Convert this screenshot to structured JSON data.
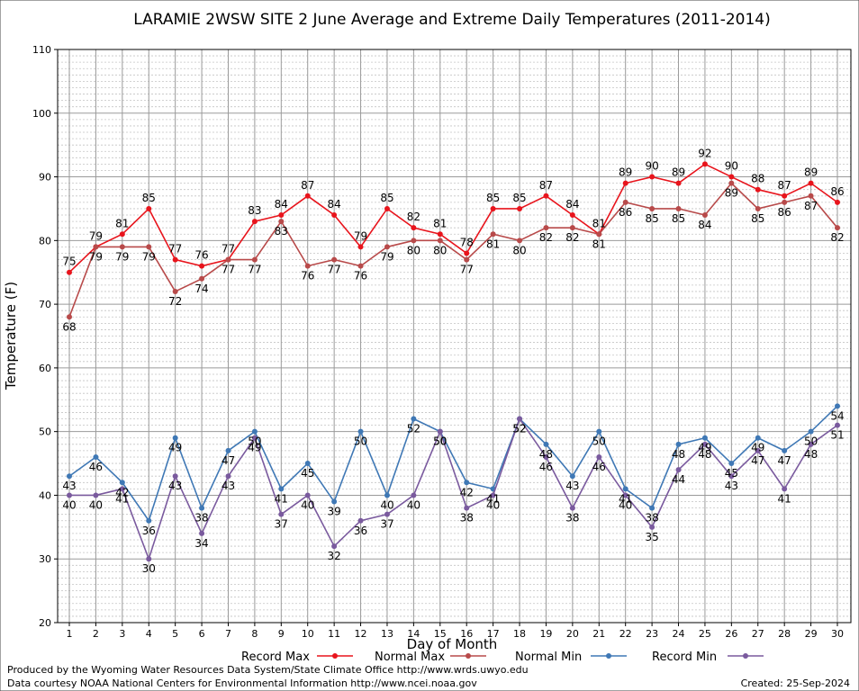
{
  "chart_data": {
    "type": "line",
    "title": "LARAMIE 2WSW SITE 2 June Average and Extreme Daily Temperatures (2011-2014)",
    "xlabel": "Day of Month",
    "ylabel": "Temperature (F)",
    "xlim": [
      1,
      30
    ],
    "ylim": [
      20,
      110
    ],
    "y_ticks": [
      20,
      30,
      40,
      50,
      60,
      70,
      80,
      90,
      100,
      110
    ],
    "x": [
      1,
      2,
      3,
      4,
      5,
      6,
      7,
      8,
      9,
      10,
      11,
      12,
      13,
      14,
      15,
      16,
      17,
      18,
      19,
      20,
      21,
      22,
      23,
      24,
      25,
      26,
      27,
      28,
      29,
      30
    ],
    "grid": true,
    "legend_position": "bottom",
    "series": [
      {
        "name": "Record Max",
        "color": "#e8141c",
        "values": [
          75,
          79,
          81,
          85,
          77,
          76,
          77,
          83,
          84,
          87,
          84,
          79,
          85,
          82,
          81,
          78,
          85,
          85,
          87,
          84,
          81,
          89,
          90,
          89,
          92,
          90,
          88,
          87,
          89,
          86
        ]
      },
      {
        "name": "Normal Max",
        "color": "#b84a4a",
        "values": [
          68,
          79,
          79,
          79,
          72,
          74,
          77,
          77,
          83,
          76,
          77,
          76,
          79,
          80,
          80,
          77,
          81,
          80,
          82,
          82,
          81,
          86,
          85,
          85,
          84,
          89,
          85,
          86,
          87,
          82
        ]
      },
      {
        "name": "Normal Min",
        "color": "#3f78b5",
        "values": [
          43,
          46,
          42,
          36,
          49,
          38,
          47,
          50,
          41,
          45,
          39,
          50,
          40,
          52,
          50,
          42,
          41,
          52,
          48,
          43,
          50,
          41,
          38,
          48,
          49,
          45,
          49,
          47,
          50,
          54
        ]
      },
      {
        "name": "Record Min",
        "color": "#7a5a9e",
        "values": [
          40,
          40,
          41,
          30,
          43,
          34,
          43,
          49,
          37,
          40,
          32,
          36,
          37,
          40,
          50,
          38,
          40,
          52,
          46,
          38,
          46,
          40,
          35,
          44,
          48,
          43,
          47,
          41,
          48,
          51
        ]
      }
    ]
  },
  "footer": {
    "producer": "Produced by the Wyoming Water Resources Data System/State Climate Office http://www.wrds.uwyo.edu",
    "courtesy": "Data courtesy NOAA National Centers for Environmental Information http://www.ncei.noaa.gov",
    "created": "Created: 25-Sep-2024"
  }
}
